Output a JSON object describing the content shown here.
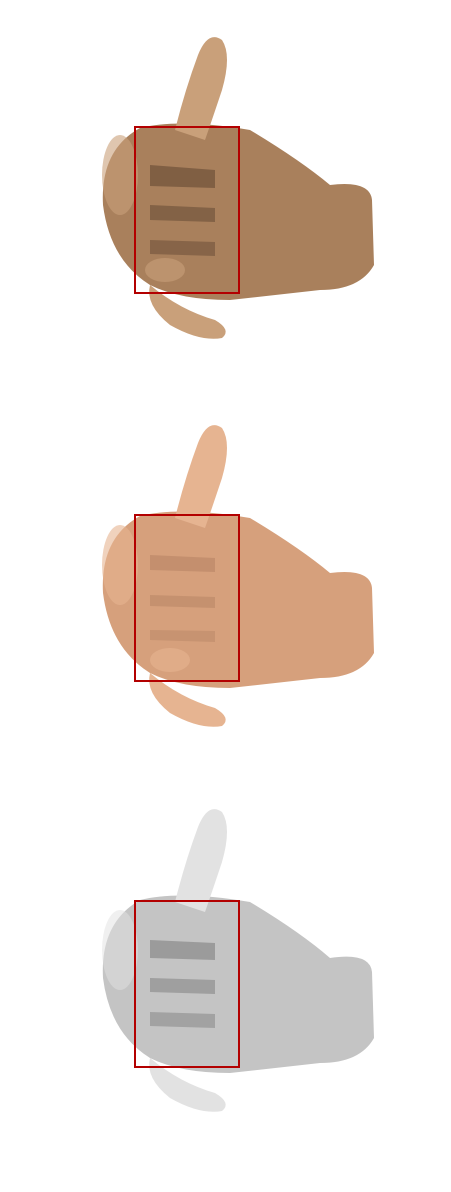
{
  "panels": [
    {
      "kind": "original-texture",
      "colors": {
        "skin_light": "#c9a07a",
        "skin_mid": "#a9805c",
        "skin_dark": "#7a5638",
        "shadow": "#5e4330"
      }
    },
    {
      "kind": "predicted-texture",
      "colors": {
        "skin_light": "#e6b491",
        "skin_mid": "#d6a07c",
        "skin_dark": "#b27c5c",
        "shadow": "#9a6a50"
      }
    },
    {
      "kind": "grayscale-render",
      "colors": {
        "skin_light": "#e2e2e2",
        "skin_mid": "#c4c4c4",
        "skin_dark": "#9a9a9a",
        "shadow": "#7a7a7a"
      }
    }
  ],
  "highlight": {
    "color": "#b30000"
  }
}
